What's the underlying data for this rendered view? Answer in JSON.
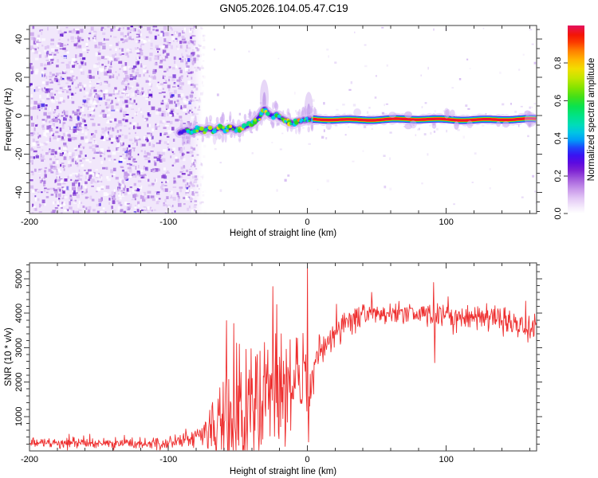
{
  "title": "GN05.2026.104.05.47.C19",
  "colors": {
    "background": "#ffffff",
    "axis": "#3a3a3a",
    "snr_line": "#ee2e2e",
    "noise_base": "#f1e7fb",
    "noise_palette": [
      "#ddc4f4",
      "#c49ae9",
      "#a169dc",
      "#8036cf",
      "#611ad0",
      "#3518e6"
    ],
    "trace_wavy_layers": [
      [
        "#d8bef4",
        13,
        0.65
      ],
      [
        "#a873e2",
        8,
        0.7
      ],
      [
        "#6a2ad8",
        5,
        0.85
      ],
      [
        "#3a14ea",
        3.2,
        0.9
      ]
    ],
    "trace_band_layers": [
      [
        "#d8bef4",
        12,
        0.55
      ],
      [
        "#3a14ea",
        9,
        0.95
      ],
      [
        "#00c0f8",
        7,
        1
      ],
      [
        "#00dc50",
        5.4,
        1
      ],
      [
        "#e6ea00",
        4.4,
        1
      ],
      [
        "#ff1a00",
        3.4,
        1
      ],
      [
        "#e01058",
        1.3,
        0.9
      ]
    ],
    "blob_palette": [
      "#00ccf0",
      "#00e08c",
      "#2ad818",
      "#9ae800",
      "#f4e000",
      "#ff9000",
      "#ff2400"
    ]
  },
  "chart_data": [
    {
      "type": "heatmap",
      "panel": "spectrogram",
      "xlabel": "Height of straight line (km)",
      "ylabel": "Frequency (Hz)",
      "xlim": [
        -200,
        165
      ],
      "ylim": [
        -51,
        47
      ],
      "xticks": [
        -200,
        -100,
        0,
        100
      ],
      "xminor_step": 20,
      "yticks": [
        -40,
        -20,
        0,
        20,
        40
      ],
      "yminor_step": 5,
      "grid": false,
      "colorbar": {
        "label": "Normalized spectral amplitude",
        "ticks": [
          "0.0",
          "0.2",
          "0.4",
          "0.6",
          "0.8"
        ],
        "range": [
          0,
          1
        ],
        "gradient": [
          [
            0.0,
            "#ffffff"
          ],
          [
            0.03,
            "#f6eefc"
          ],
          [
            0.08,
            "#e3c8f5"
          ],
          [
            0.13,
            "#c897ea"
          ],
          [
            0.18,
            "#a55fdd"
          ],
          [
            0.23,
            "#7d22d3"
          ],
          [
            0.27,
            "#5c0ae0"
          ],
          [
            0.31,
            "#3913f2"
          ],
          [
            0.35,
            "#1e46fa"
          ],
          [
            0.39,
            "#009cf8"
          ],
          [
            0.43,
            "#00c4e4"
          ],
          [
            0.47,
            "#00dcba"
          ],
          [
            0.52,
            "#00e386"
          ],
          [
            0.57,
            "#0ae24e"
          ],
          [
            0.62,
            "#43df18"
          ],
          [
            0.67,
            "#85e400"
          ],
          [
            0.72,
            "#c3e600"
          ],
          [
            0.77,
            "#f2dd00"
          ],
          [
            0.82,
            "#ffb300"
          ],
          [
            0.87,
            "#ff7a00"
          ],
          [
            0.91,
            "#fb3c00"
          ],
          [
            0.95,
            "#f31505"
          ],
          [
            1.0,
            "#e4115e"
          ]
        ]
      },
      "noise_field": {
        "x_range": [
          -200,
          -83
        ],
        "amplitude_range": [
          0,
          0.25
        ]
      },
      "trace": {
        "description": "narrow Doppler trace near 0 Hz, amplitude grows from ~0.4 to 1.0 with height",
        "spine": [
          [
            -92,
            -9
          ],
          [
            -87,
            -7.5
          ],
          [
            -83,
            -8.5
          ],
          [
            -79,
            -7
          ],
          [
            -75,
            -8
          ],
          [
            -71,
            -6.5
          ],
          [
            -67,
            -8
          ],
          [
            -63,
            -6
          ],
          [
            -59,
            -7.5
          ],
          [
            -55,
            -6
          ],
          [
            -51,
            -7.5
          ],
          [
            -47,
            -6.5
          ],
          [
            -43,
            -5
          ],
          [
            -39,
            -4
          ],
          [
            -35,
            -1
          ],
          [
            -31,
            3.5
          ],
          [
            -28,
            1
          ],
          [
            -25,
            -0.5
          ],
          [
            -22,
            0.5
          ],
          [
            -19,
            -1.5
          ],
          [
            -16,
            -2.5
          ],
          [
            -13,
            -3.5
          ],
          [
            -10,
            -4
          ],
          [
            -7,
            -3
          ],
          [
            -4,
            -2.5
          ],
          [
            0,
            -2
          ],
          [
            5,
            -2
          ],
          [
            165,
            -2
          ]
        ],
        "blob_range": [
          -89,
          7
        ],
        "solid_band_range": [
          4,
          165
        ],
        "fuzz_events": [
          [
            -31,
            17
          ],
          [
            1,
            16
          ],
          [
            91,
            6
          ],
          [
            160,
            8
          ]
        ]
      }
    },
    {
      "type": "line",
      "panel": "snr",
      "xlabel": "Height of straight line (km)",
      "ylabel": "SNR (10 * v/v)",
      "xlim": [
        -200,
        165
      ],
      "ylim": [
        0,
        5460
      ],
      "xticks": [
        -200,
        -100,
        0,
        100
      ],
      "xminor_step": 20,
      "yticks": [
        1000,
        2000,
        3000,
        4000,
        5000
      ],
      "yminor_step": 200,
      "grid": false,
      "envelope": [
        [
          -200,
          220,
          180
        ],
        [
          -150,
          220,
          180
        ],
        [
          -120,
          240,
          200
        ],
        [
          -100,
          240,
          200
        ],
        [
          -88,
          300,
          250
        ],
        [
          -80,
          380,
          320
        ],
        [
          -74,
          500,
          600
        ],
        [
          -68,
          650,
          1000
        ],
        [
          -62,
          800,
          1600
        ],
        [
          -56,
          950,
          2400
        ],
        [
          -50,
          1000,
          2400
        ],
        [
          -44,
          1000,
          2100
        ],
        [
          -38,
          1100,
          2100
        ],
        [
          -32,
          1250,
          2300
        ],
        [
          -26,
          1400,
          2000
        ],
        [
          -21,
          1600,
          2400
        ],
        [
          -16,
          1800,
          1500
        ],
        [
          -11,
          2000,
          1200
        ],
        [
          -6,
          2250,
          1500
        ],
        [
          -2,
          2600,
          1700
        ],
        [
          0.5,
          1200,
          1000
        ],
        [
          2,
          1700,
          900
        ],
        [
          5,
          2300,
          800
        ],
        [
          9,
          2750,
          700
        ],
        [
          14,
          3100,
          600
        ],
        [
          20,
          3450,
          520
        ],
        [
          28,
          3700,
          470
        ],
        [
          38,
          3900,
          440
        ],
        [
          55,
          4000,
          430
        ],
        [
          75,
          3980,
          430
        ],
        [
          95,
          3930,
          420
        ],
        [
          115,
          3890,
          430
        ],
        [
          135,
          3840,
          450
        ],
        [
          148,
          3780,
          450
        ],
        [
          157,
          3620,
          520
        ],
        [
          165,
          3680,
          460
        ]
      ],
      "spikes": [
        {
          "x": -53,
          "value": 3700
        },
        {
          "x": -49,
          "value": 3100
        },
        {
          "x": -44,
          "value": 2950
        },
        {
          "x": -36,
          "value": 2800
        },
        {
          "x": -31,
          "value": 3150
        },
        {
          "x": -22,
          "value": 4250
        },
        {
          "x": -19,
          "value": 3400
        },
        {
          "x": 0,
          "value": 5460
        },
        {
          "x": 0.8,
          "value": 260
        },
        {
          "x": 91,
          "value": 4890
        },
        {
          "x": 91.7,
          "value": 2560
        },
        {
          "x": 129,
          "value": 4280
        }
      ]
    }
  ]
}
